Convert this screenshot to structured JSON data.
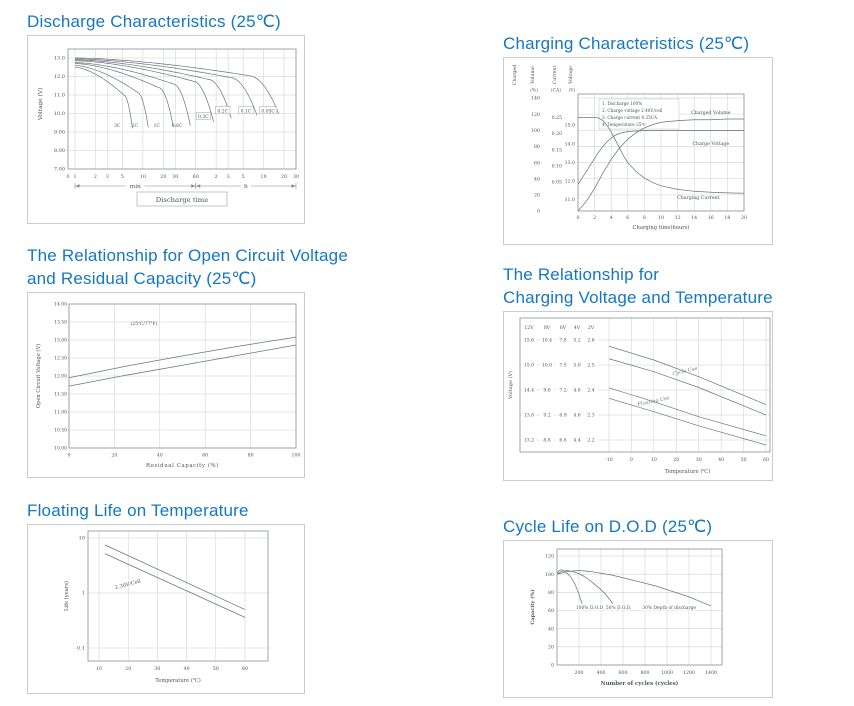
{
  "page": {
    "background": "#ffffff",
    "accent_color": "#1577c2"
  },
  "titles": {
    "discharge": "Discharge Characteristics (25℃)",
    "charging": "Charging Characteristics (25℃)",
    "ocv": "The Relationship for Open Circuit Voltage\nand Residual Capacity (25℃)",
    "charge_temp": "The Relationship for\nCharging Voltage and Temperature",
    "float_life": "Floating Life on Temperature",
    "cycle_life": "Cycle Life on D.O.D (25℃)"
  },
  "chart_data": [
    {
      "id": "discharge",
      "type": "line",
      "title": "Discharge Characteristics (25℃)",
      "ylabel": "Voltage (V)",
      "xlabel": "Discharge time",
      "x_unit_min": "min",
      "x_unit_h": "h",
      "ylim": [
        7,
        13.5
      ],
      "y_ticks": [
        "13.0",
        "12.0",
        "11.0",
        "10.0",
        "9.00",
        "8.00",
        "7.00"
      ],
      "y_values": [
        13,
        12,
        11,
        10,
        9,
        8,
        7
      ],
      "x_ticks": [
        {
          "label": "0",
          "t": 0
        },
        {
          "label": "1",
          "t": 1
        },
        {
          "label": "2",
          "t": 2
        },
        {
          "label": "3",
          "t": 3
        },
        {
          "label": "5",
          "t": 5
        },
        {
          "label": "10",
          "t": 10
        },
        {
          "label": "20",
          "t": 20
        },
        {
          "label": "30",
          "t": 30
        },
        {
          "label": "60",
          "t": 60
        },
        {
          "label": "2",
          "t": 120
        },
        {
          "label": "3",
          "t": 180
        },
        {
          "label": "5",
          "t": 300
        },
        {
          "label": "10",
          "t": 600
        },
        {
          "label": "20",
          "t": 1200
        },
        {
          "label": "30",
          "t": 1800
        }
      ],
      "series": [
        {
          "label": "3C",
          "end_min": 7,
          "v_start": 12.5,
          "v_knee": 11.0,
          "v_end": 9.2,
          "label_t": 4.2,
          "label_v": 9.35,
          "boxed": false
        },
        {
          "label": "2C",
          "end_min": 12,
          "v_start": 12.6,
          "v_knee": 11.15,
          "v_end": 9.25,
          "label_t": 7.6,
          "label_v": 9.35,
          "boxed": false
        },
        {
          "label": "1C",
          "end_min": 28,
          "v_start": 12.7,
          "v_knee": 11.4,
          "v_end": 9.3,
          "label_t": 16,
          "label_v": 9.35,
          "boxed": false
        },
        {
          "label": "0.6C",
          "end_min": 50,
          "v_start": 12.75,
          "v_knee": 11.6,
          "v_end": 9.35,
          "label_t": 32,
          "label_v": 9.35,
          "boxed": false
        },
        {
          "label": "0.3C",
          "end_min": 110,
          "v_start": 12.85,
          "v_knee": 11.75,
          "v_end": 9.55,
          "label_t": 78,
          "label_v": 9.85,
          "boxed": true
        },
        {
          "label": "0.2C",
          "end_min": 200,
          "v_start": 12.9,
          "v_knee": 11.85,
          "v_end": 9.75,
          "label_t": 150,
          "label_v": 10.15,
          "boxed": true
        },
        {
          "label": "0.1C",
          "end_min": 480,
          "v_start": 12.95,
          "v_knee": 11.95,
          "v_end": 9.9,
          "label_t": 330,
          "label_v": 10.15,
          "boxed": true
        },
        {
          "label": "0.05C",
          "end_min": 1000,
          "v_start": 13.0,
          "v_knee": 12.05,
          "v_end": 10.0,
          "label_t": 700,
          "label_v": 10.15,
          "boxed": true
        }
      ]
    },
    {
      "id": "charging",
      "type": "line",
      "title": "Charging Characteristics (25℃)",
      "xlabel": "Charging time(hours)",
      "x_ticks": [
        0,
        2,
        4,
        6,
        8,
        10,
        12,
        14,
        16,
        18,
        20
      ],
      "y_qualifier": "Charged",
      "y_axes": [
        {
          "name": "Volume",
          "unit": "(%)",
          "ticks": [
            "140",
            "120",
            "100",
            "80",
            "60",
            "40",
            "20",
            "0"
          ]
        },
        {
          "name": "Current",
          "unit": "(CA)",
          "ticks": [
            "0.25",
            "0.20",
            "0.15",
            "0.10",
            "0.05"
          ]
        },
        {
          "name": "Voltage",
          "unit": "(V)",
          "ticks": [
            "15.0",
            "14.0",
            "13.0",
            "12.0",
            "11.0"
          ]
        }
      ],
      "notes": [
        "1. Discharge 100%",
        "2. Charge voltage 2.40V/cell",
        "3. Charge current 0.25CA",
        "4. Temperature 25℃"
      ],
      "series": [
        {
          "name": "Charged Volume",
          "scale": "volume",
          "label_x": 16,
          "label_y": 122,
          "x": [
            0,
            1,
            2,
            3,
            4,
            5,
            6,
            7,
            8,
            9,
            10,
            12,
            14,
            16,
            18,
            20
          ],
          "y": [
            0,
            12,
            28,
            47,
            64,
            78,
            89,
            97,
            103,
            107,
            110,
            112,
            113,
            113,
            114,
            114
          ]
        },
        {
          "name": "Charge Voltage",
          "scale": "voltage",
          "label_x": 16,
          "label_y": 14.0,
          "x": [
            0,
            0.5,
            1,
            1.5,
            2,
            2.5,
            3,
            3.5,
            4,
            4.5,
            5,
            6,
            7,
            8,
            10,
            12,
            14,
            16,
            18,
            20
          ],
          "y": [
            11.8,
            12.15,
            12.5,
            12.85,
            13.2,
            13.55,
            13.85,
            14.1,
            14.3,
            14.45,
            14.55,
            14.65,
            14.68,
            14.7,
            14.7,
            14.7,
            14.7,
            14.7,
            14.7,
            14.7
          ]
        },
        {
          "name": "Charging Current",
          "scale": "current",
          "label_x": 14.5,
          "label_y": 0.002,
          "x": [
            0,
            1,
            2,
            2.5,
            3,
            3.5,
            4,
            4.5,
            5,
            5.5,
            6,
            7,
            8,
            9,
            10,
            12,
            14,
            16,
            18,
            20
          ],
          "y": [
            0.25,
            0.25,
            0.25,
            0.248,
            0.24,
            0.225,
            0.205,
            0.18,
            0.155,
            0.13,
            0.11,
            0.082,
            0.062,
            0.048,
            0.038,
            0.027,
            0.021,
            0.018,
            0.016,
            0.015
          ]
        }
      ]
    },
    {
      "id": "ocv",
      "type": "line",
      "title": "The Relationship for Open Circuit Voltage and Residual Capacity (25℃)",
      "ylabel": "Open Circuit Voltage (V)",
      "xlabel": "Residual Capacity (%)",
      "ylim": [
        10,
        14
      ],
      "xlim": [
        0,
        100
      ],
      "y_ticks": [
        "14.00",
        "13.50",
        "13.00",
        "12.50",
        "12.00",
        "11.50",
        "11.00",
        "10.50",
        "10.00"
      ],
      "y_values": [
        14,
        13.5,
        13,
        12.5,
        12,
        11.5,
        11,
        10.5,
        10
      ],
      "x_ticks": [
        0,
        20,
        40,
        60,
        80,
        100
      ],
      "annotation": "(25℃/77℉)",
      "annotation_pos": [
        33,
        13.42
      ],
      "band": {
        "upper": {
          "x": [
            0,
            25,
            50,
            75,
            100
          ],
          "y": [
            11.95,
            12.27,
            12.56,
            12.83,
            13.08
          ]
        },
        "lower": {
          "x": [
            0,
            25,
            50,
            75,
            100
          ],
          "y": [
            11.72,
            12.02,
            12.3,
            12.58,
            12.86
          ]
        }
      }
    },
    {
      "id": "charge_temp",
      "type": "line",
      "title": "The Relationship for Charging Voltage and Temperature",
      "ylabel": "Voltage (V)",
      "xlabel": "Temperature (℃)",
      "col_headers": [
        "12V",
        "8V",
        "6V",
        "4V",
        "2V"
      ],
      "voltage_table": [
        [
          "15.6",
          "10.4",
          "7.8",
          "5.2",
          "2.6"
        ],
        [
          "15.0",
          "10.0",
          "7.5",
          "5.0",
          "2.5"
        ],
        [
          "14.4",
          "9.6",
          "7.2",
          "4.8",
          "2.4"
        ],
        [
          "13.8",
          "9.2",
          "6.9",
          "4.6",
          "2.3"
        ],
        [
          "13.2",
          "8.8",
          "6.6",
          "4.4",
          "2.2"
        ]
      ],
      "x_ticks": [
        -10,
        0,
        10,
        20,
        30,
        40,
        50,
        60
      ],
      "bands": [
        {
          "label": "Cycle Use",
          "label_pos": [
            24,
            14.82
          ],
          "label_angle": -13,
          "upper": {
            "x": [
              -10,
              10,
              30,
              60
            ],
            "y": [
              15.45,
              15.12,
              14.72,
              14.05
            ]
          },
          "lower": {
            "x": [
              -10,
              10,
              30,
              60
            ],
            "y": [
              15.15,
              14.84,
              14.46,
              13.8
            ]
          }
        },
        {
          "label": "Floating Use",
          "label_pos": [
            10,
            14.1
          ],
          "label_angle": -12,
          "upper": {
            "x": [
              -10,
              10,
              30,
              60
            ],
            "y": [
              14.45,
              14.12,
              13.76,
              13.3
            ]
          },
          "lower": {
            "x": [
              -10,
              10,
              30,
              60
            ],
            "y": [
              14.2,
              13.88,
              13.54,
              13.08
            ]
          }
        }
      ]
    },
    {
      "id": "float_life",
      "type": "line",
      "title": "Floating Life on Temperature",
      "ylabel": "Life (years)",
      "xlabel": "Temperature (℃)",
      "y_scale": "log",
      "y_ticks": [
        "10",
        "1",
        "0.1"
      ],
      "y_values": [
        10,
        1,
        0.1
      ],
      "x_ticks": [
        10,
        20,
        30,
        40,
        50,
        60
      ],
      "annotation": "2.30V/Cell",
      "annotation_pos": [
        20,
        1.35
      ],
      "annotation_angle": -15,
      "band": {
        "upper": {
          "x": [
            12,
            60
          ],
          "y": [
            7.5,
            0.5
          ]
        },
        "lower": {
          "x": [
            12,
            60
          ],
          "y": [
            5.2,
            0.36
          ]
        }
      }
    },
    {
      "id": "cycle_life",
      "type": "line",
      "title": "Cycle Life on D.O.D (25℃)",
      "ylabel": "Capacity (%)",
      "xlabel": "Number of cycles (cycles)",
      "ylim": [
        0,
        120
      ],
      "xlim": [
        0,
        1400
      ],
      "y_ticks": [
        0,
        20,
        40,
        60,
        80,
        100,
        120
      ],
      "x_ticks": [
        200,
        400,
        600,
        800,
        1000,
        1200,
        1400
      ],
      "series": [
        {
          "label": "100% D.O.D.",
          "label_pos": [
            300,
            63
          ],
          "x": [
            0,
            20,
            40,
            70,
            100,
            130,
            160,
            190,
            215,
            240,
            260
          ],
          "y": [
            101,
            104,
            105,
            103,
            100,
            96,
            90,
            81,
            72,
            64,
            60
          ]
        },
        {
          "label": "50% D.O.D.",
          "label_pos": [
            560,
            63
          ],
          "x": [
            0,
            40,
            90,
            140,
            190,
            240,
            290,
            340,
            390,
            440,
            480,
            520,
            550
          ],
          "y": [
            100,
            103,
            104,
            103,
            101,
            98,
            94,
            89,
            84,
            78,
            72,
            65,
            60
          ]
        },
        {
          "label": "30% Depth of discharge",
          "label_pos": [
            1020,
            63
          ],
          "x": [
            0,
            100,
            200,
            300,
            400,
            500,
            600,
            700,
            800,
            900,
            1000,
            1100,
            1200,
            1300,
            1400
          ],
          "y": [
            100,
            103,
            104,
            103,
            101,
            99,
            96,
            93,
            90,
            87,
            83,
            79,
            75,
            70,
            65
          ]
        }
      ]
    }
  ]
}
